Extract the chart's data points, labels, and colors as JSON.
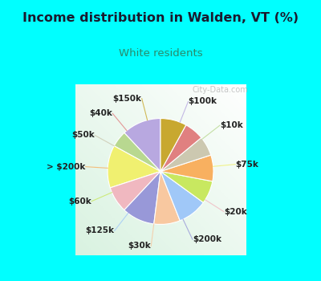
{
  "title": "Income distribution in Walden, VT (%)",
  "subtitle": "White residents",
  "title_color": "#1a1a2e",
  "subtitle_color": "#2a8a6a",
  "bg_cyan": "#00ffff",
  "watermark": "City-Data.com",
  "labels": [
    "$100k",
    "$10k",
    "$75k",
    "$20k",
    "$200k",
    "$30k",
    "$125k",
    "$60k",
    "> $200k",
    "$50k",
    "$40k",
    "$150k"
  ],
  "values": [
    12,
    5,
    13,
    8,
    10,
    8,
    9,
    7,
    8,
    6,
    6,
    8
  ],
  "colors": [
    "#b8a8e0",
    "#b8d890",
    "#f0f070",
    "#f0b8c0",
    "#9898d8",
    "#f8c8a0",
    "#a0c8f8",
    "#c8e860",
    "#f8b060",
    "#ccc8b0",
    "#e08080",
    "#c8a830"
  ],
  "label_fontsize": 7.5,
  "startangle": 90
}
